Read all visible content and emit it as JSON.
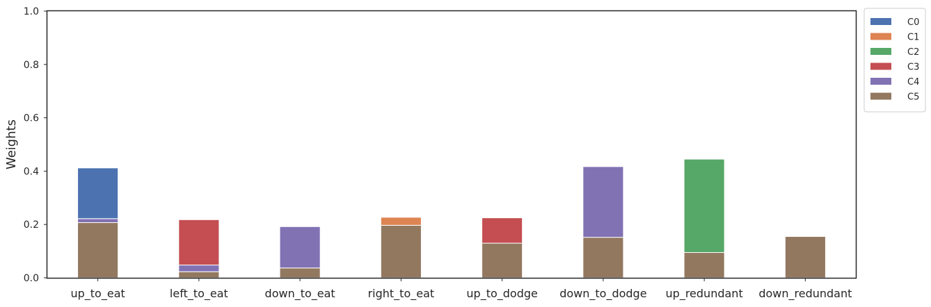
{
  "chart_data": {
    "type": "bar",
    "stacked": true,
    "title": "",
    "xlabel": "",
    "ylabel": "Weights",
    "ylim": [
      0,
      1.0
    ],
    "yticks": [
      0.0,
      0.2,
      0.4,
      0.6,
      0.8,
      1.0
    ],
    "ytick_labels": [
      "0.0",
      "0.2",
      "0.4",
      "0.6",
      "0.8",
      "1.0"
    ],
    "grid": false,
    "legend_position": "outside-top-right",
    "categories": [
      "up_to_eat",
      "left_to_eat",
      "down_to_eat",
      "right_to_eat",
      "up_to_dodge",
      "down_to_dodge",
      "up_redundant",
      "down_redundant"
    ],
    "stack_order": [
      "C5",
      "C4",
      "C3",
      "C2",
      "C1",
      "C0"
    ],
    "series": [
      {
        "name": "C0",
        "color": "#4c72b0",
        "values": [
          0.19,
          0,
          0,
          0,
          0,
          0,
          0,
          0
        ]
      },
      {
        "name": "C1",
        "color": "#dd8452",
        "values": [
          0,
          0,
          0,
          0.03,
          0,
          0,
          0,
          0
        ]
      },
      {
        "name": "C2",
        "color": "#55a868",
        "values": [
          0,
          0,
          0,
          0,
          0,
          0,
          0.35,
          0
        ]
      },
      {
        "name": "C3",
        "color": "#c44e52",
        "values": [
          0,
          0.17,
          0,
          0,
          0.095,
          0,
          0,
          0
        ]
      },
      {
        "name": "C4",
        "color": "#8172b3",
        "values": [
          0.015,
          0.025,
          0.155,
          0,
          0,
          0.265,
          0,
          0
        ]
      },
      {
        "name": "C5",
        "color": "#937860",
        "values": [
          0.207,
          0.023,
          0.037,
          0.197,
          0.13,
          0.152,
          0.095,
          0.155
        ]
      }
    ]
  }
}
